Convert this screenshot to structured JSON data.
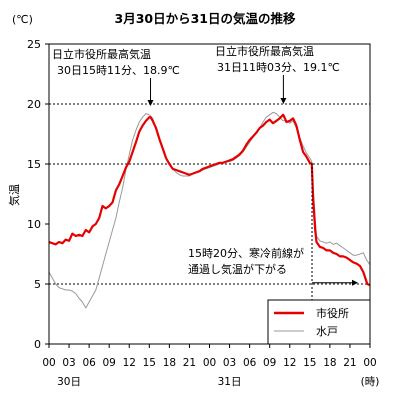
{
  "chart_data": {
    "type": "line",
    "title": "3月30日から31日の気温の推移",
    "ylabel": "気温",
    "y_unit": "(℃)",
    "x_unit": "(時)",
    "ylim": [
      0,
      25
    ],
    "yticks": [
      0,
      5,
      10,
      15,
      20,
      25
    ],
    "xlim": [
      0,
      48
    ],
    "xtick_labels": [
      "00",
      "03",
      "06",
      "09",
      "12",
      "15",
      "18",
      "21",
      "00",
      "03",
      "06",
      "09",
      "12",
      "15",
      "18",
      "21",
      "00"
    ],
    "day_labels": [
      {
        "label": "30日",
        "hour": 3
      },
      {
        "label": "31日",
        "hour": 27
      },
      {
        "label": "(時)",
        "hour": 48
      }
    ],
    "grid": {
      "dashed_hlines": [
        5,
        15,
        20,
        25
      ]
    },
    "legend_position": "bottom-right",
    "annotations": [
      {
        "line1": "日立市役所最高気温",
        "line2": "30日15時11分、18.9℃",
        "hour": 15.18,
        "value": 18.9
      },
      {
        "line1": "日立市役所最高気温",
        "line2": "31日11時03分、19.1℃",
        "hour": 35.05,
        "value": 19.1
      },
      {
        "line1": "15時20分、寒冷前線が",
        "line2": "通過し気温が下がる",
        "hour": 39.33,
        "value": 5.1
      }
    ],
    "series": [
      {
        "name": "市役所",
        "color": "#e60000",
        "points": [
          [
            0,
            8.5
          ],
          [
            0.5,
            8.4
          ],
          [
            1,
            8.3
          ],
          [
            1.5,
            8.5
          ],
          [
            2,
            8.4
          ],
          [
            2.5,
            8.7
          ],
          [
            3,
            8.6
          ],
          [
            3.5,
            9.2
          ],
          [
            4,
            9.0
          ],
          [
            4.5,
            9.1
          ],
          [
            5,
            9.0
          ],
          [
            5.5,
            9.5
          ],
          [
            6,
            9.3
          ],
          [
            6.5,
            9.8
          ],
          [
            7,
            10.0
          ],
          [
            7.5,
            10.5
          ],
          [
            8,
            11.5
          ],
          [
            8.5,
            11.3
          ],
          [
            9,
            11.5
          ],
          [
            9.5,
            11.8
          ],
          [
            10,
            12.8
          ],
          [
            10.5,
            13.3
          ],
          [
            11,
            14.0
          ],
          [
            11.5,
            14.7
          ],
          [
            12,
            15.2
          ],
          [
            12.5,
            16.0
          ],
          [
            13,
            16.8
          ],
          [
            13.5,
            17.7
          ],
          [
            14,
            18.2
          ],
          [
            14.5,
            18.6
          ],
          [
            15,
            18.9
          ],
          [
            15.2,
            18.9
          ],
          [
            15.5,
            18.6
          ],
          [
            16,
            18.0
          ],
          [
            16.5,
            17.1
          ],
          [
            17,
            16.3
          ],
          [
            17.5,
            15.5
          ],
          [
            18,
            15.0
          ],
          [
            18.5,
            14.6
          ],
          [
            19,
            14.5
          ],
          [
            19.5,
            14.4
          ],
          [
            20,
            14.3
          ],
          [
            20.5,
            14.2
          ],
          [
            21,
            14.1
          ],
          [
            21.5,
            14.2
          ],
          [
            22,
            14.3
          ],
          [
            22.5,
            14.4
          ],
          [
            23,
            14.6
          ],
          [
            23.5,
            14.7
          ],
          [
            24,
            14.8
          ],
          [
            24.5,
            14.9
          ],
          [
            25,
            15.0
          ],
          [
            25.5,
            15.1
          ],
          [
            26,
            15.1
          ],
          [
            26.5,
            15.2
          ],
          [
            27,
            15.3
          ],
          [
            27.5,
            15.4
          ],
          [
            28,
            15.6
          ],
          [
            28.5,
            15.8
          ],
          [
            29,
            16.1
          ],
          [
            29.5,
            16.6
          ],
          [
            30,
            17.0
          ],
          [
            30.5,
            17.3
          ],
          [
            31,
            17.6
          ],
          [
            31.5,
            18.0
          ],
          [
            32,
            18.2
          ],
          [
            32.5,
            18.5
          ],
          [
            33,
            18.7
          ],
          [
            33.5,
            18.4
          ],
          [
            34,
            18.6
          ],
          [
            34.5,
            18.8
          ],
          [
            35,
            19.1
          ],
          [
            35.2,
            18.9
          ],
          [
            35.5,
            18.5
          ],
          [
            36,
            18.6
          ],
          [
            36.5,
            18.8
          ],
          [
            37,
            18.2
          ],
          [
            37.5,
            17.0
          ],
          [
            38,
            16.0
          ],
          [
            38.5,
            15.6
          ],
          [
            39,
            15.1
          ],
          [
            39.3,
            15.0
          ],
          [
            39.5,
            12.0
          ],
          [
            39.8,
            9.5
          ],
          [
            40,
            8.5
          ],
          [
            40.5,
            8.1
          ],
          [
            41,
            8.0
          ],
          [
            41.5,
            7.8
          ],
          [
            42,
            7.8
          ],
          [
            42.5,
            7.6
          ],
          [
            43,
            7.5
          ],
          [
            43.5,
            7.3
          ],
          [
            44,
            7.3
          ],
          [
            44.5,
            7.2
          ],
          [
            45,
            7.0
          ],
          [
            45.5,
            6.8
          ],
          [
            46,
            6.7
          ],
          [
            46.5,
            6.5
          ],
          [
            47,
            6.0
          ],
          [
            47.3,
            5.5
          ],
          [
            47.6,
            5.0
          ],
          [
            48,
            4.9
          ]
        ]
      },
      {
        "name": "水戸",
        "color": "#999999",
        "points": [
          [
            0,
            6.0
          ],
          [
            0.5,
            5.5
          ],
          [
            1,
            5.0
          ],
          [
            1.5,
            4.7
          ],
          [
            2,
            4.6
          ],
          [
            2.5,
            4.5
          ],
          [
            3,
            4.5
          ],
          [
            3.5,
            4.4
          ],
          [
            4,
            4.2
          ],
          [
            4.5,
            3.8
          ],
          [
            5,
            3.5
          ],
          [
            5.5,
            3.0
          ],
          [
            6,
            3.5
          ],
          [
            6.5,
            4.0
          ],
          [
            7,
            4.5
          ],
          [
            7.5,
            5.5
          ],
          [
            8,
            6.5
          ],
          [
            8.5,
            7.5
          ],
          [
            9,
            8.5
          ],
          [
            9.5,
            9.5
          ],
          [
            10,
            10.5
          ],
          [
            10.5,
            11.8
          ],
          [
            11,
            13.0
          ],
          [
            11.5,
            14.5
          ],
          [
            12,
            15.8
          ],
          [
            12.5,
            17.0
          ],
          [
            13,
            17.8
          ],
          [
            13.5,
            18.5
          ],
          [
            14,
            18.9
          ],
          [
            14.5,
            19.2
          ],
          [
            15,
            19.1
          ],
          [
            15.5,
            18.8
          ],
          [
            16,
            18.0
          ],
          [
            16.5,
            17.0
          ],
          [
            17,
            16.2
          ],
          [
            17.5,
            15.5
          ],
          [
            18,
            15.0
          ],
          [
            18.5,
            14.6
          ],
          [
            19,
            14.3
          ],
          [
            19.5,
            14.1
          ],
          [
            20,
            14.0
          ],
          [
            20.5,
            14.0
          ],
          [
            21,
            14.0
          ],
          [
            21.5,
            14.2
          ],
          [
            22,
            14.3
          ],
          [
            22.5,
            14.4
          ],
          [
            23,
            14.5
          ],
          [
            23.5,
            14.6
          ],
          [
            24,
            14.7
          ],
          [
            24.5,
            14.8
          ],
          [
            25,
            14.9
          ],
          [
            25.5,
            15.0
          ],
          [
            26,
            15.1
          ],
          [
            26.5,
            15.2
          ],
          [
            27,
            15.2
          ],
          [
            27.5,
            15.3
          ],
          [
            28,
            15.5
          ],
          [
            28.5,
            15.7
          ],
          [
            29,
            16.0
          ],
          [
            29.5,
            16.4
          ],
          [
            30,
            16.8
          ],
          [
            30.5,
            17.2
          ],
          [
            31,
            17.6
          ],
          [
            31.5,
            18.0
          ],
          [
            32,
            18.5
          ],
          [
            32.5,
            18.9
          ],
          [
            33,
            19.1
          ],
          [
            33.5,
            19.3
          ],
          [
            34,
            19.2
          ],
          [
            34.5,
            18.9
          ],
          [
            35,
            18.6
          ],
          [
            35.5,
            18.6
          ],
          [
            36,
            18.4
          ],
          [
            36.5,
            18.6
          ],
          [
            37,
            18.0
          ],
          [
            37.5,
            17.2
          ],
          [
            38,
            16.5
          ],
          [
            38.5,
            15.9
          ],
          [
            39,
            15.5
          ],
          [
            39.3,
            15.2
          ],
          [
            39.5,
            13.0
          ],
          [
            39.8,
            10.5
          ],
          [
            40,
            9.0
          ],
          [
            40.5,
            8.6
          ],
          [
            41,
            8.5
          ],
          [
            41.5,
            8.4
          ],
          [
            42,
            8.5
          ],
          [
            42.5,
            8.3
          ],
          [
            43,
            8.4
          ],
          [
            43.5,
            8.2
          ],
          [
            44,
            8.0
          ],
          [
            44.5,
            7.8
          ],
          [
            45,
            7.6
          ],
          [
            45.5,
            7.4
          ],
          [
            46,
            7.4
          ],
          [
            46.5,
            7.5
          ],
          [
            47,
            7.6
          ],
          [
            47.5,
            7.0
          ],
          [
            48,
            6.6
          ]
        ]
      }
    ]
  }
}
